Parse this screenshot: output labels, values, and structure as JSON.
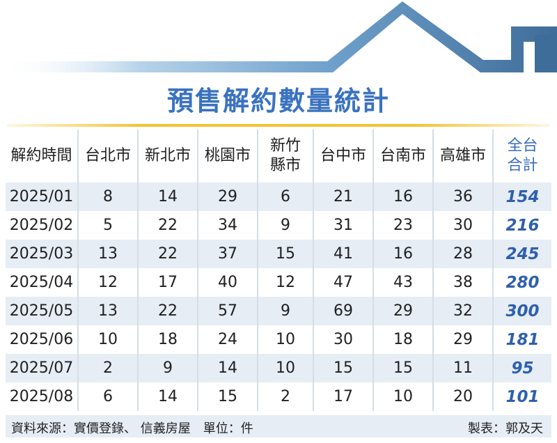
{
  "title": "預售解約數量統計",
  "table": {
    "headers": [
      "解約時間",
      "台北市",
      "新北市",
      "桃園市",
      "新竹\n縣市",
      "台中市",
      "台南市",
      "高雄市",
      "全台\n合計"
    ],
    "rows": [
      [
        "2025/01",
        "8",
        "14",
        "29",
        "6",
        "21",
        "16",
        "36",
        "154"
      ],
      [
        "2025/02",
        "5",
        "22",
        "34",
        "9",
        "31",
        "23",
        "30",
        "216"
      ],
      [
        "2025/03",
        "13",
        "22",
        "37",
        "15",
        "41",
        "16",
        "28",
        "245"
      ],
      [
        "2025/04",
        "12",
        "17",
        "40",
        "12",
        "47",
        "43",
        "38",
        "280"
      ],
      [
        "2025/05",
        "13",
        "22",
        "57",
        "9",
        "69",
        "29",
        "32",
        "300"
      ],
      [
        "2025/06",
        "10",
        "18",
        "24",
        "10",
        "30",
        "18",
        "29",
        "181"
      ],
      [
        "2025/07",
        "2",
        "9",
        "14",
        "10",
        "15",
        "15",
        "11",
        "95"
      ],
      [
        "2025/08",
        "6",
        "14",
        "15",
        "2",
        "17",
        "10",
        "20",
        "101"
      ]
    ]
  },
  "footer": {
    "source": "資料來源：實價登錄、 信義房屋　單位：件",
    "credit": "製表：郭及天"
  },
  "colors": {
    "title": "#3a72c0",
    "total": "#2f5fae",
    "stripe": "#e6edf5",
    "accent_line": "#f2c230",
    "roof_dark": "#3f6d99",
    "roof_light": "#a8cbe6"
  }
}
